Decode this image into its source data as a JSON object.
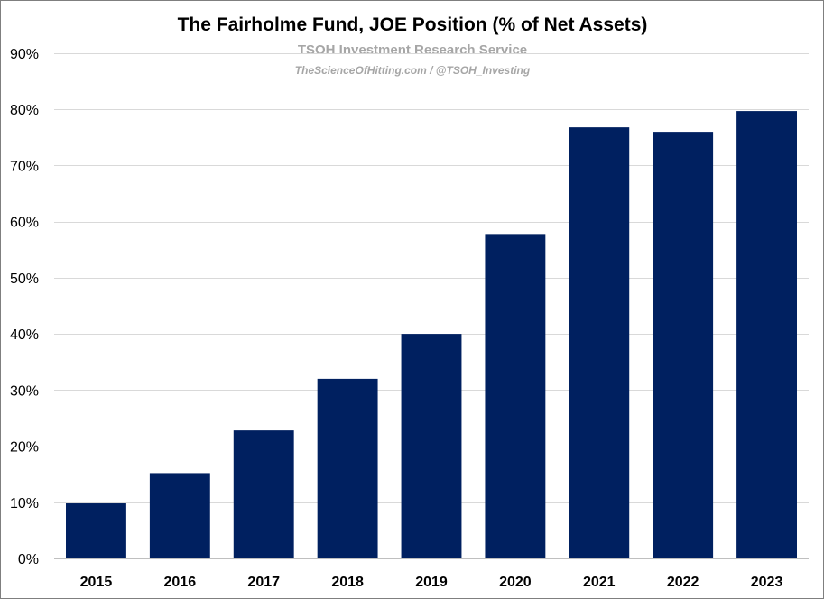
{
  "chart_data": {
    "type": "bar",
    "title": "The Fairholme Fund, JOE Position (% of Net Assets)",
    "subtitle": "TSOH Investment Research Service",
    "source": "TheScienceOfHitting.com / @TSOH_Investing",
    "xlabel": "",
    "ylabel": "",
    "categories": [
      "2015",
      "2016",
      "2017",
      "2018",
      "2019",
      "2020",
      "2021",
      "2022",
      "2023"
    ],
    "values": [
      9.8,
      15.2,
      22.8,
      32.0,
      40.0,
      57.8,
      76.8,
      76.0,
      79.7
    ],
    "ylim": [
      0,
      90
    ],
    "yticks": [
      0,
      10,
      20,
      30,
      40,
      50,
      60,
      70,
      80,
      90
    ],
    "ytick_labels": [
      "0%",
      "10%",
      "20%",
      "30%",
      "40%",
      "50%",
      "60%",
      "70%",
      "80%",
      "90%"
    ],
    "grid": true,
    "legend": "none",
    "bar_color": "#002060"
  }
}
